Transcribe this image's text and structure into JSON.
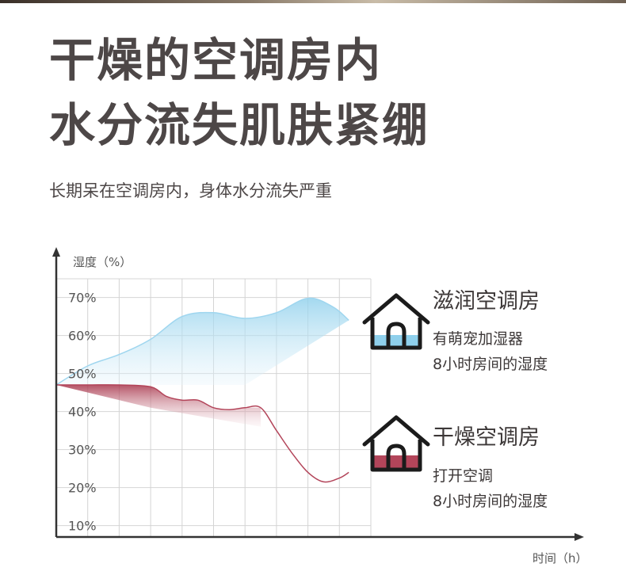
{
  "title": {
    "line1": "干燥的空调房内",
    "line2": "水分流失肌肤紧绷"
  },
  "subtitle": "长期呆在空调房内，身体水分流失严重",
  "legend": {
    "moist": {
      "title": "滋润空调房",
      "line1": "有萌宠加湿器",
      "line2": "8小时房间的湿度"
    },
    "dry": {
      "title": "干燥空调房",
      "line1": "打开空调",
      "line2": "8小时房间的湿度"
    }
  },
  "colors": {
    "moist": "#a8d8ef",
    "dry": "#b3455a",
    "grid": "#d4d4d4",
    "axis": "#333333"
  },
  "chart_data": {
    "type": "area",
    "ylabel": "湿度（%）",
    "xlabel": "时间（h）",
    "yticks": [
      "70%",
      "60%",
      "50%",
      "40%",
      "30%",
      "20%",
      "10%"
    ],
    "ytick_values": [
      70,
      60,
      50,
      40,
      30,
      20,
      10
    ],
    "ylim": [
      7,
      82
    ],
    "xlim": [
      0,
      10
    ],
    "grid": true,
    "series": [
      {
        "name": "滋润空调房",
        "x": [
          0,
          1,
          2,
          3,
          4,
          5,
          6,
          7,
          8,
          8.8,
          9.3
        ],
        "y": [
          47,
          52,
          55,
          59,
          65,
          66,
          64.5,
          66,
          69.8,
          67.5,
          64
        ]
      },
      {
        "name": "干燥空调房",
        "x": [
          0,
          1,
          2,
          3,
          3.5,
          4,
          4.5,
          5,
          5.5,
          6,
          6.5,
          7,
          7.5,
          8,
          8.5,
          9,
          9.3
        ],
        "y": [
          47,
          47,
          47,
          46.5,
          44,
          43,
          43,
          41,
          40.5,
          41,
          41,
          35,
          29,
          24,
          21.5,
          22.5,
          24
        ]
      }
    ]
  }
}
